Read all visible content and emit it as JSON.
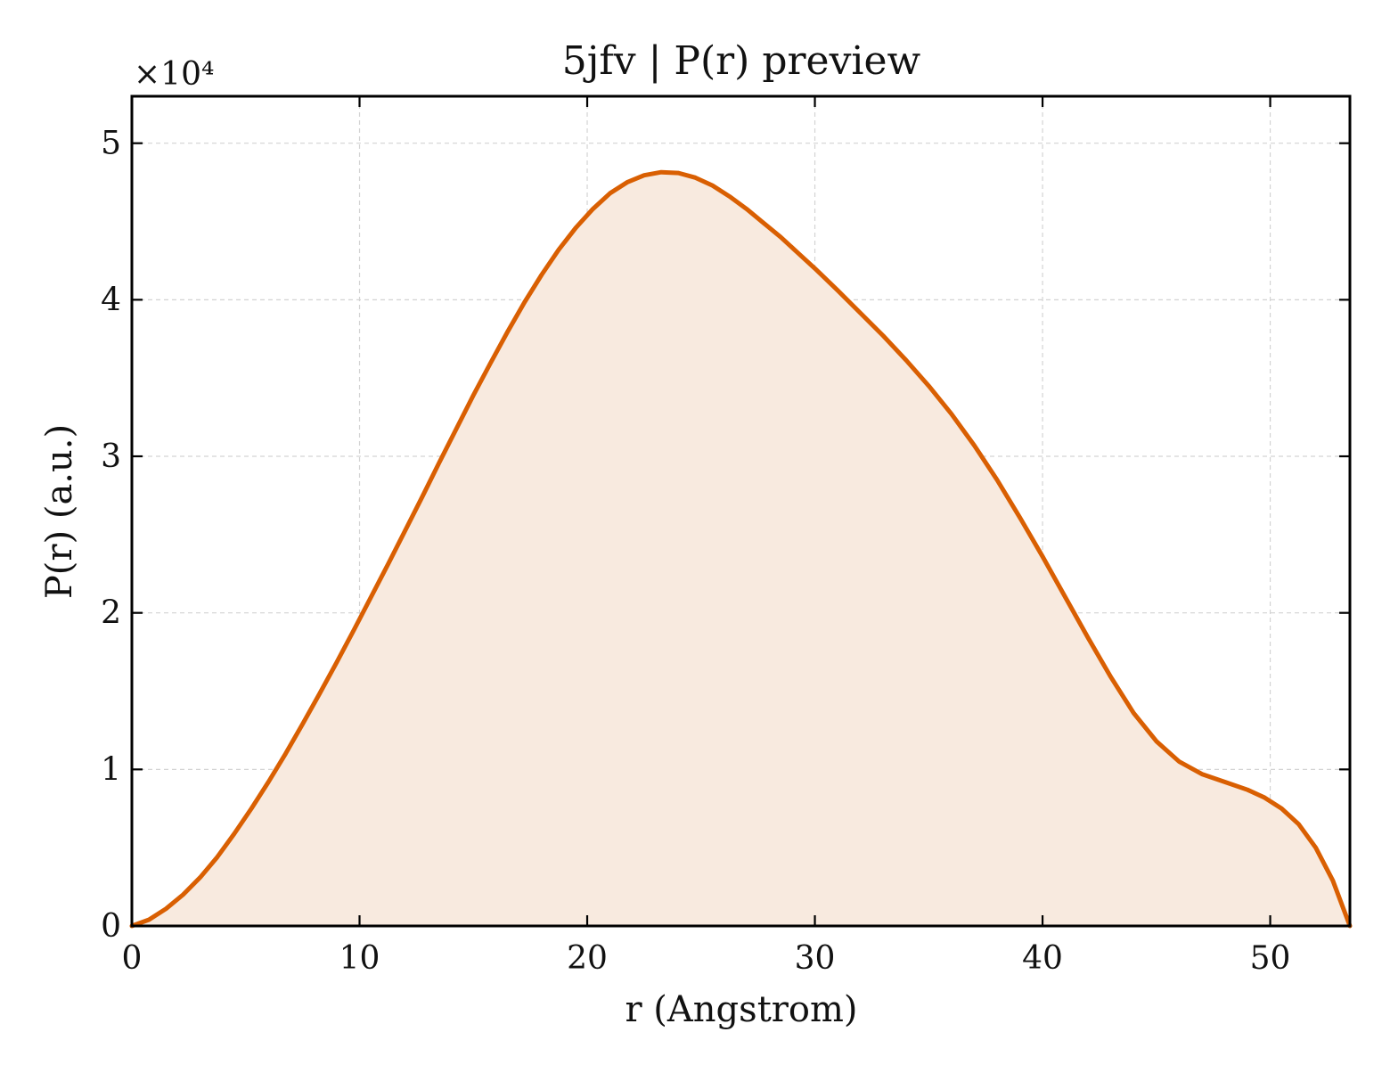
{
  "chart_data": {
    "type": "area",
    "title": "5jfv | P(r) preview",
    "xlabel": "r (Angstrom)",
    "ylabel": "P(r) (a.u.)",
    "y_offset_label": "×10⁴",
    "y_scale_factor": 10000,
    "xlim": [
      0,
      53.5
    ],
    "ylim": [
      0,
      53000
    ],
    "xticks": [
      0,
      10,
      20,
      30,
      40,
      50
    ],
    "xtick_labels": [
      "0",
      "10",
      "20",
      "30",
      "40",
      "50"
    ],
    "yticks": [
      0,
      10000,
      20000,
      30000,
      40000,
      50000
    ],
    "ytick_labels": [
      "0",
      "1",
      "2",
      "3",
      "4",
      "5"
    ],
    "grid": true,
    "line_color": "#d95f02",
    "fill_color": "#f8eadf",
    "series": [
      {
        "x": [
          0,
          0.75,
          1.5,
          2.25,
          3,
          3.75,
          4.5,
          5.25,
          6,
          6.75,
          7.5,
          8.25,
          9,
          9.75,
          10.5,
          11.25,
          12,
          12.75,
          13.5,
          14.25,
          15,
          15.75,
          16.5,
          17.25,
          18,
          18.75,
          19.5,
          20.25,
          21,
          21.75,
          22.5,
          23.25,
          24,
          24.75,
          25.5,
          26.25,
          27,
          27.75,
          28.5,
          29.25,
          30,
          31,
          32,
          33,
          34,
          35,
          36,
          37,
          38,
          39,
          40,
          41,
          42,
          43,
          44,
          45,
          46,
          47,
          48,
          49,
          49.75,
          50.5,
          51.25,
          52,
          52.75,
          53.5
        ],
        "y": [
          0,
          400,
          1100,
          2000,
          3100,
          4400,
          5900,
          7500,
          9200,
          11000,
          12900,
          14850,
          16850,
          18900,
          21000,
          23100,
          25250,
          27400,
          29600,
          31750,
          33900,
          35950,
          37950,
          39850,
          41600,
          43200,
          44600,
          45800,
          46800,
          47500,
          47950,
          48150,
          48100,
          47800,
          47300,
          46600,
          45800,
          44900,
          44000,
          43000,
          42000,
          40600,
          39150,
          37700,
          36150,
          34500,
          32700,
          30700,
          28500,
          26100,
          23600,
          21000,
          18400,
          15900,
          13600,
          11800,
          10500,
          9700,
          9200,
          8700,
          8200,
          7500,
          6500,
          5000,
          2900,
          0
        ]
      }
    ]
  }
}
